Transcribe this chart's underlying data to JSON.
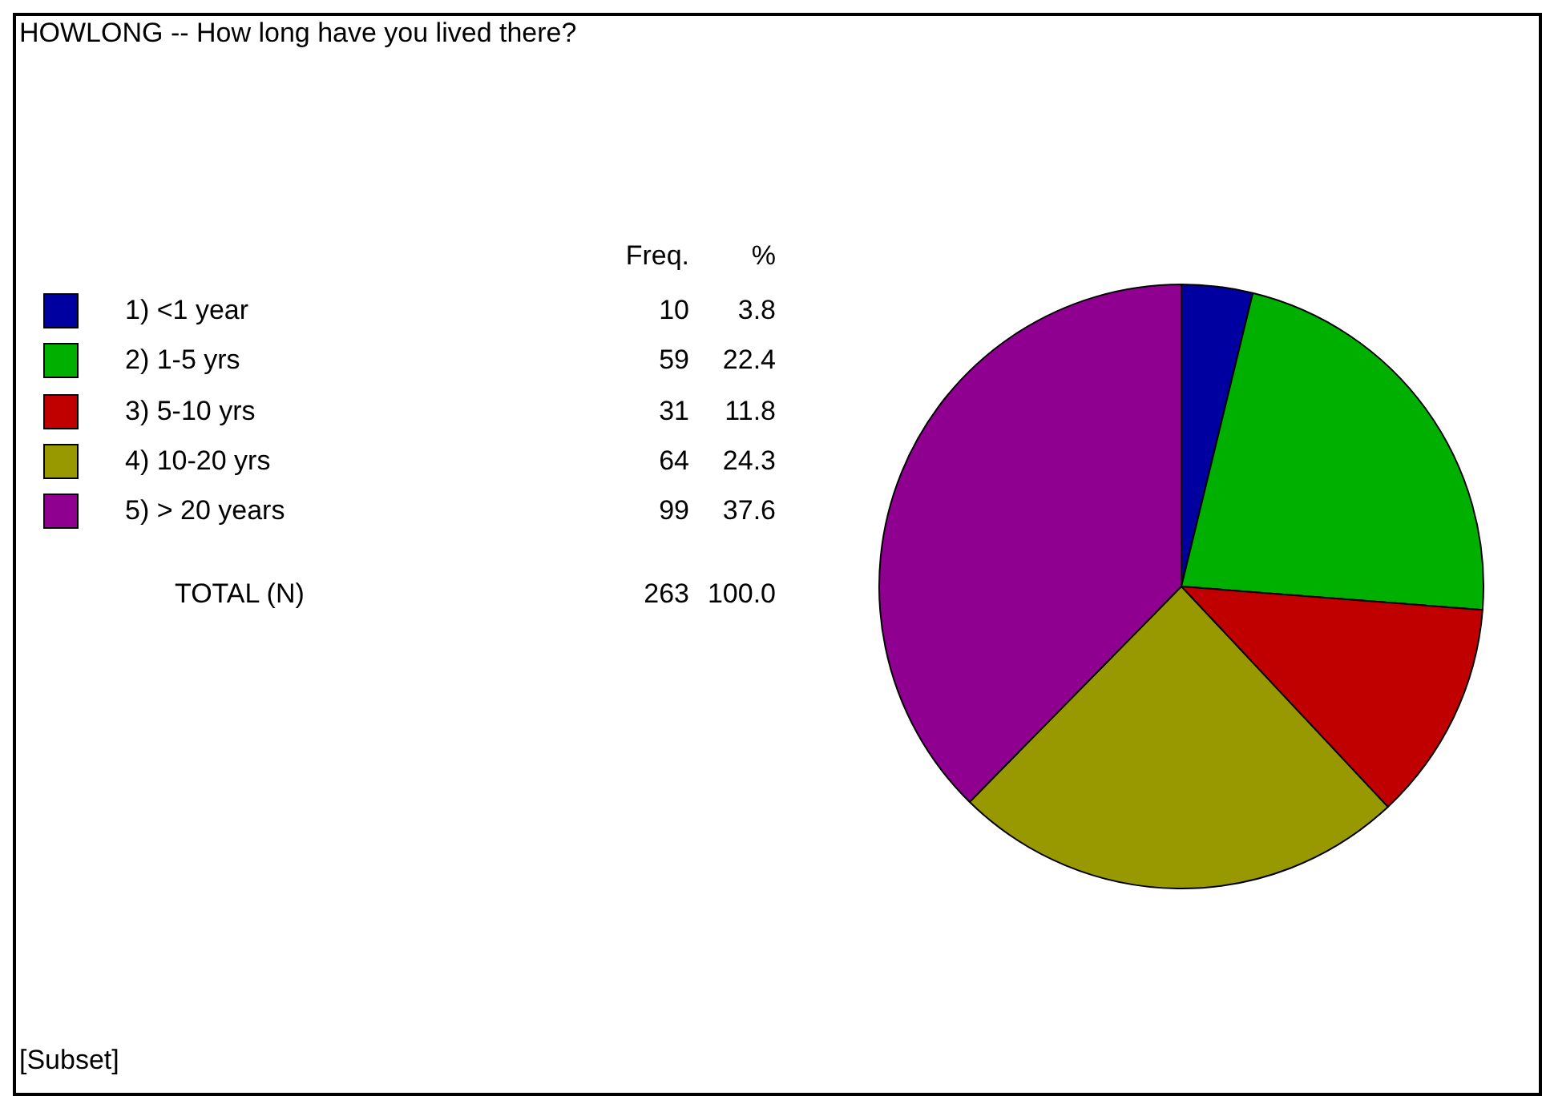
{
  "chart_data": {
    "type": "pie",
    "title": "HOWLONG -- How long have you lived there?",
    "categories": [
      "1)  <1 year",
      "2)  1-5 yrs",
      "3)  5-10 yrs",
      "4)  10-20 yrs",
      "5)  > 20 years"
    ],
    "values": [
      10,
      59,
      31,
      64,
      99
    ],
    "colors": [
      "#0000a0",
      "#00b000",
      "#c00000",
      "#989800",
      "#900090"
    ],
    "value_labels": [
      "10",
      "59",
      "31",
      "64",
      "99"
    ],
    "legend": "left",
    "annotations": [
      "Freq.",
      "%",
      "3.8",
      "22.4",
      "11.8",
      "24.3",
      "37.6",
      "TOTAL  (N)",
      "263",
      "100.0",
      "[Subset]"
    ]
  }
}
